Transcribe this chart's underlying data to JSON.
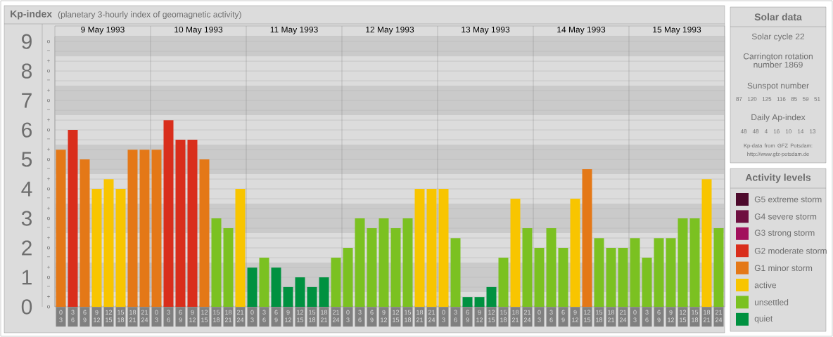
{
  "chart_data": [
    {
      "type": "bar",
      "title": "Kp-index",
      "subtitle": "(planetary 3-hourly index of geomagnetic activity)",
      "categories": [
        "0 3",
        "3 6",
        "6 9",
        "9 12",
        "12 15",
        "15 18",
        "18 21",
        "21 24",
        "0 3",
        "3 6",
        "6 9",
        "9 12",
        "12 15",
        "15 18",
        "18 21",
        "21 24",
        "0 3",
        "3 6",
        "6 9",
        "9 12",
        "12 15",
        "15 18",
        "18 21",
        "21 24",
        "0 3",
        "3 6",
        "6 9",
        "9 12",
        "12 15",
        "15 18",
        "18 21",
        "21 24",
        "0 3",
        "3 6",
        "6 9",
        "9 12",
        "12 15",
        "15 18",
        "18 21",
        "21 24",
        "0 3",
        "3 6",
        "6 9",
        "9 12",
        "12 15",
        "15 18",
        "18 21",
        "21 24",
        "0 3",
        "3 6",
        "6 9",
        "9 12",
        "12 15",
        "15 18",
        "18 21",
        "21 24"
      ],
      "series": [
        {
          "name": "G5 extreme storm",
          "color": "#4d0a2c",
          "values": [
            null,
            null,
            null,
            null,
            null,
            null,
            null,
            null,
            null,
            null,
            null,
            null,
            null,
            null,
            null,
            null,
            null,
            null,
            null,
            null,
            null,
            null,
            null,
            null,
            null,
            null,
            null,
            null,
            null,
            null,
            null,
            null,
            null,
            null,
            null,
            null,
            null,
            null,
            null,
            null,
            null,
            null,
            null,
            null,
            null,
            null,
            null,
            null,
            null,
            null,
            null,
            null,
            null,
            null,
            null,
            null
          ]
        },
        {
          "name": "G4 severe storm",
          "color": "#6e0f40",
          "values": [
            null,
            null,
            null,
            null,
            null,
            null,
            null,
            null,
            null,
            null,
            null,
            null,
            null,
            null,
            null,
            null,
            null,
            null,
            null,
            null,
            null,
            null,
            null,
            null,
            null,
            null,
            null,
            null,
            null,
            null,
            null,
            null,
            null,
            null,
            null,
            null,
            null,
            null,
            null,
            null,
            null,
            null,
            null,
            null,
            null,
            null,
            null,
            null,
            null,
            null,
            null,
            null,
            null,
            null,
            null,
            null
          ]
        },
        {
          "name": "G3 strong storm",
          "color": "#a2105c",
          "values": [
            null,
            null,
            null,
            null,
            null,
            null,
            null,
            null,
            null,
            null,
            null,
            null,
            null,
            null,
            null,
            null,
            null,
            null,
            null,
            null,
            null,
            null,
            null,
            null,
            null,
            null,
            null,
            null,
            null,
            null,
            null,
            null,
            null,
            null,
            null,
            null,
            null,
            null,
            null,
            null,
            null,
            null,
            null,
            null,
            null,
            null,
            null,
            null,
            null,
            null,
            null,
            null,
            null,
            null,
            null,
            null
          ]
        },
        {
          "name": "G2 moderate storm",
          "color": "#d92e1c",
          "values": [
            null,
            6,
            null,
            null,
            null,
            null,
            null,
            null,
            null,
            6.33,
            5.67,
            5.67,
            null,
            null,
            null,
            null,
            null,
            null,
            null,
            null,
            null,
            null,
            null,
            null,
            null,
            null,
            null,
            null,
            null,
            null,
            null,
            null,
            null,
            null,
            null,
            null,
            null,
            null,
            null,
            null,
            null,
            null,
            null,
            null,
            null,
            null,
            null,
            null,
            null,
            null,
            null,
            null,
            null,
            null,
            null,
            null
          ]
        },
        {
          "name": "G1 minor storm",
          "color": "#e47817",
          "values": [
            5.33,
            null,
            5,
            null,
            null,
            null,
            5.33,
            5.33,
            5.33,
            null,
            null,
            null,
            5,
            null,
            null,
            null,
            null,
            null,
            null,
            null,
            null,
            null,
            null,
            null,
            null,
            null,
            null,
            null,
            null,
            null,
            null,
            null,
            null,
            null,
            null,
            null,
            null,
            null,
            null,
            null,
            null,
            null,
            null,
            null,
            4.67,
            null,
            null,
            null,
            null,
            null,
            null,
            null,
            null,
            null,
            null,
            null
          ]
        },
        {
          "name": "active",
          "color": "#f8c500",
          "values": [
            null,
            null,
            null,
            4,
            4.33,
            4,
            null,
            null,
            null,
            null,
            null,
            null,
            null,
            null,
            null,
            4,
            null,
            null,
            null,
            null,
            null,
            null,
            null,
            null,
            null,
            null,
            null,
            null,
            null,
            null,
            4,
            4,
            4,
            null,
            null,
            null,
            null,
            null,
            3.67,
            null,
            null,
            null,
            null,
            3.67,
            null,
            null,
            null,
            null,
            null,
            null,
            null,
            null,
            null,
            null,
            4.33,
            null
          ]
        },
        {
          "name": "unsettled",
          "color": "#7bc121",
          "values": [
            null,
            null,
            null,
            null,
            null,
            null,
            null,
            null,
            null,
            null,
            null,
            null,
            null,
            3,
            2.67,
            null,
            null,
            1.67,
            null,
            null,
            null,
            null,
            null,
            1.67,
            2,
            3,
            2.67,
            3,
            2.67,
            3,
            null,
            null,
            null,
            2.33,
            null,
            null,
            null,
            1.67,
            null,
            2.67,
            2,
            2.67,
            2,
            null,
            null,
            2.33,
            2,
            2,
            2.33,
            1.67,
            2.33,
            2.33,
            3,
            3,
            null,
            2.67
          ]
        },
        {
          "name": "quiet",
          "color": "#009140",
          "values": [
            null,
            null,
            null,
            null,
            null,
            null,
            null,
            null,
            null,
            null,
            null,
            null,
            null,
            null,
            null,
            null,
            1.33,
            null,
            1.33,
            0.67,
            1,
            0.67,
            1,
            null,
            null,
            null,
            null,
            null,
            null,
            null,
            null,
            null,
            null,
            null,
            0.33,
            0.33,
            0.67,
            null,
            null,
            null,
            null,
            null,
            null,
            null,
            null,
            null,
            null,
            null,
            null,
            null,
            null,
            null,
            null,
            null,
            null,
            null
          ]
        }
      ],
      "ylim": [
        0,
        9.17
      ],
      "yticks": [
        0,
        1,
        2,
        3,
        4,
        5,
        6,
        7,
        8,
        9
      ],
      "grid": true,
      "bands": [
        {
          "axis": "y",
          "from": 0.5,
          "to": 1.5,
          "color": "#cacaca"
        },
        {
          "axis": "y",
          "from": 2.5,
          "to": 3.5,
          "color": "#cacaca"
        },
        {
          "axis": "y",
          "from": 4.5,
          "to": 5.5,
          "color": "#cacaca"
        },
        {
          "axis": "y",
          "from": 6.5,
          "to": 7.5,
          "color": "#cacaca"
        },
        {
          "axis": "y",
          "from": 8.5,
          "to": 9.17,
          "color": "#cacaca"
        }
      ],
      "annotations": [
        "9 May 1993",
        "10 May 1993",
        "11 May 1993",
        "12 May 1993",
        "13 May 1993",
        "14 May 1993",
        "15 May 1993",
        "o",
        "+",
        "−",
        "o",
        "+",
        "−",
        "o",
        "+",
        "−",
        "o",
        "+",
        "−",
        "o",
        "+",
        "−",
        "o",
        "+",
        "−",
        "o",
        "+",
        "−",
        "o",
        "+",
        "−",
        "o",
        "+",
        "−",
        "o"
      ],
      "legend": "right",
      "legend_title": "Activity levels"
    },
    {
      "type": "other",
      "title": "Solar data",
      "annotations": [
        "Solar cycle 22",
        "Carrington rotation number 1869",
        "Sunspot number",
        "87 120 125 116 85 59 51",
        "Daily Ap-index",
        "48 48 4 16 10 14 13",
        "Kp-data from GFZ Potsdam: http://www.gfz-potsdam.de"
      ]
    }
  ]
}
